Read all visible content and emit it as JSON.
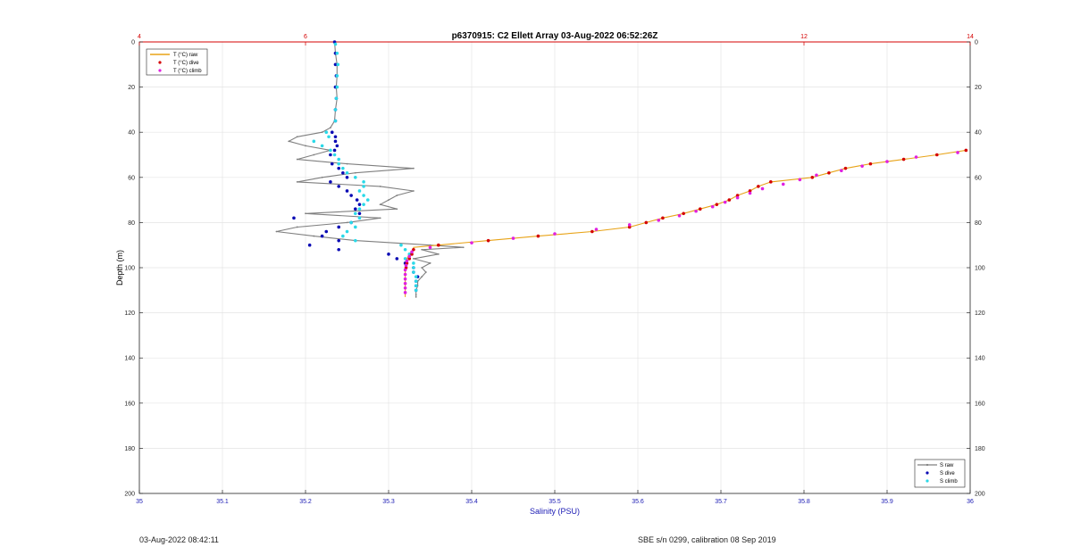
{
  "chart_data": {
    "type": "line",
    "title": "p6370915: C2 Ellett Array 03-Aug-2022 06:52:26Z",
    "xlabel": "Salinity (PSU)",
    "ylabel": "Depth (m)",
    "xlim": [
      35,
      36
    ],
    "x_ticks": [
      "35",
      "35.1",
      "35.2",
      "35.3",
      "35.4",
      "35.5",
      "35.6",
      "35.7",
      "35.8",
      "35.9",
      "36"
    ],
    "x2lim": [
      4,
      14
    ],
    "x2_ticks": [
      "4",
      "6",
      "12",
      "14"
    ],
    "x2_tick_values": [
      4,
      6,
      12,
      14
    ],
    "ylim": [
      0,
      200
    ],
    "y_ticks": [
      "0",
      "20",
      "40",
      "60",
      "80",
      "100",
      "120",
      "140",
      "160",
      "180",
      "200"
    ],
    "y_reversed": true,
    "grid": true,
    "legend_temp": {
      "placement": "top-left",
      "entries": [
        "T (°C) raw",
        "T (°C) dive",
        "T (°C) climb"
      ]
    },
    "legend_sal": {
      "placement": "bottom-right",
      "entries": [
        "S raw",
        "S dive",
        "S climb"
      ]
    },
    "colors": {
      "t_raw": "#e8a317",
      "t_dive": "#d40000",
      "t_climb": "#e020e0",
      "s_raw": "#7f7f7f",
      "s_dive": "#0a0ab4",
      "s_climb": "#2ad9e8",
      "x2_axis": "#d40000",
      "x_axis": "#1a1ab4"
    },
    "series": [
      {
        "key": "s_raw",
        "depth": [
          0,
          5,
          10,
          15,
          20,
          25,
          30,
          35,
          38,
          40,
          42,
          44,
          46,
          48,
          50,
          52,
          54,
          56,
          58,
          60,
          62,
          64,
          66,
          68,
          70,
          72,
          74,
          76,
          78,
          80,
          82,
          84,
          86,
          88,
          90,
          91,
          92,
          94,
          96,
          98,
          100,
          102,
          104,
          106,
          108,
          110,
          112,
          113
        ],
        "values": [
          35.235,
          35.236,
          35.238,
          35.238,
          35.237,
          35.238,
          35.236,
          35.235,
          35.23,
          35.22,
          35.19,
          35.18,
          35.2,
          35.23,
          35.21,
          35.19,
          35.25,
          35.33,
          35.26,
          35.22,
          35.19,
          35.29,
          35.33,
          35.31,
          35.3,
          35.29,
          35.31,
          35.2,
          35.29,
          35.25,
          35.19,
          35.165,
          35.21,
          35.26,
          35.35,
          35.39,
          35.34,
          35.36,
          35.33,
          35.35,
          35.34,
          35.345,
          35.34,
          35.335,
          35.335,
          35.333,
          35.333,
          35.333
        ]
      },
      {
        "key": "s_dive",
        "depth": [
          0,
          5,
          10,
          15,
          20,
          25,
          30,
          35,
          40,
          42,
          44,
          46,
          48,
          50,
          54,
          56,
          58,
          60,
          62,
          64,
          66,
          68,
          70,
          72,
          74,
          76,
          78,
          80,
          82,
          84,
          86,
          88,
          90,
          92,
          94,
          96,
          98,
          100,
          102,
          104,
          106,
          108,
          110
        ],
        "values": [
          35.235,
          35.236,
          35.236,
          35.237,
          35.236,
          35.237,
          35.236,
          35.236,
          35.232,
          35.236,
          35.236,
          35.238,
          35.235,
          35.23,
          35.232,
          35.24,
          35.245,
          35.25,
          35.23,
          35.24,
          35.25,
          35.255,
          35.262,
          35.265,
          35.26,
          35.265,
          35.186,
          35.255,
          35.24,
          35.225,
          35.22,
          35.24,
          35.205,
          35.24,
          35.3,
          35.31,
          35.32,
          35.33,
          35.33,
          35.335,
          35.333,
          35.333,
          35.333
        ]
      },
      {
        "key": "s_climb",
        "depth": [
          1,
          5,
          10,
          15,
          20,
          25,
          30,
          35,
          40,
          42,
          44,
          46,
          48,
          50,
          52,
          54,
          56,
          58,
          60,
          62,
          64,
          66,
          68,
          70,
          72,
          74,
          76,
          78,
          80,
          82,
          84,
          86,
          88,
          90,
          92,
          94,
          96,
          98,
          100,
          102,
          104,
          106,
          108,
          110
        ],
        "values": [
          35.236,
          35.238,
          35.239,
          35.238,
          35.238,
          35.237,
          35.236,
          35.236,
          35.225,
          35.228,
          35.21,
          35.22,
          35.23,
          35.235,
          35.24,
          35.24,
          35.245,
          35.25,
          35.26,
          35.27,
          35.27,
          35.265,
          35.27,
          35.275,
          35.27,
          35.265,
          35.26,
          35.265,
          35.255,
          35.26,
          35.25,
          35.245,
          35.26,
          35.315,
          35.32,
          35.325,
          35.32,
          35.33,
          35.33,
          35.33,
          35.333,
          35.333,
          35.333,
          35.333
        ]
      },
      {
        "key": "t_raw",
        "depth": [
          48,
          50,
          52,
          54,
          56,
          58,
          60,
          62,
          64,
          66,
          68,
          70,
          72,
          74,
          76,
          78,
          80,
          82,
          84,
          86,
          88,
          90,
          91,
          92,
          94,
          96,
          98,
          100,
          102,
          104,
          106,
          108,
          110,
          112,
          113
        ],
        "values": [
          13.95,
          13.6,
          13.2,
          12.8,
          12.5,
          12.3,
          12.1,
          11.6,
          11.45,
          11.35,
          11.2,
          11.1,
          10.95,
          10.75,
          10.55,
          10.3,
          10.1,
          9.9,
          9.45,
          8.8,
          8.2,
          7.6,
          7.3,
          7.3,
          7.25,
          7.22,
          7.21,
          7.2,
          7.2,
          7.2,
          7.2,
          7.2,
          7.2,
          7.2,
          7.2
        ]
      },
      {
        "key": "t_dive",
        "depth": [
          48,
          50,
          52,
          54,
          56,
          58,
          60,
          62,
          64,
          66,
          68,
          70,
          72,
          74,
          76,
          78,
          80,
          82,
          84,
          86,
          88,
          90,
          92,
          94,
          96,
          98,
          100
        ],
        "values": [
          13.95,
          13.6,
          13.2,
          12.8,
          12.5,
          12.3,
          12.1,
          11.6,
          11.45,
          11.35,
          11.2,
          11.1,
          10.95,
          10.75,
          10.55,
          10.3,
          10.1,
          9.9,
          9.45,
          8.8,
          8.2,
          7.6,
          7.3,
          7.28,
          7.25,
          7.22,
          7.21
        ]
      },
      {
        "key": "t_climb",
        "depth": [
          49,
          51,
          53,
          55,
          57,
          59,
          61,
          63,
          65,
          67,
          69,
          71,
          73,
          75,
          77,
          79,
          81,
          83,
          85,
          87,
          89,
          91,
          93,
          95,
          97,
          99,
          101,
          103,
          105,
          107,
          109,
          111
        ],
        "values": [
          13.85,
          13.35,
          13.0,
          12.7,
          12.45,
          12.15,
          11.95,
          11.75,
          11.5,
          11.35,
          11.2,
          11.05,
          10.9,
          10.7,
          10.5,
          10.25,
          9.9,
          9.5,
          9.0,
          8.5,
          8.0,
          7.5,
          7.28,
          7.25,
          7.22,
          7.21,
          7.2,
          7.2,
          7.2,
          7.2,
          7.2,
          7.2
        ]
      }
    ]
  },
  "footer": {
    "left": "03-Aug-2022 08:42:11",
    "right": "SBE s/n 0299, calibration 08 Sep 2019"
  }
}
